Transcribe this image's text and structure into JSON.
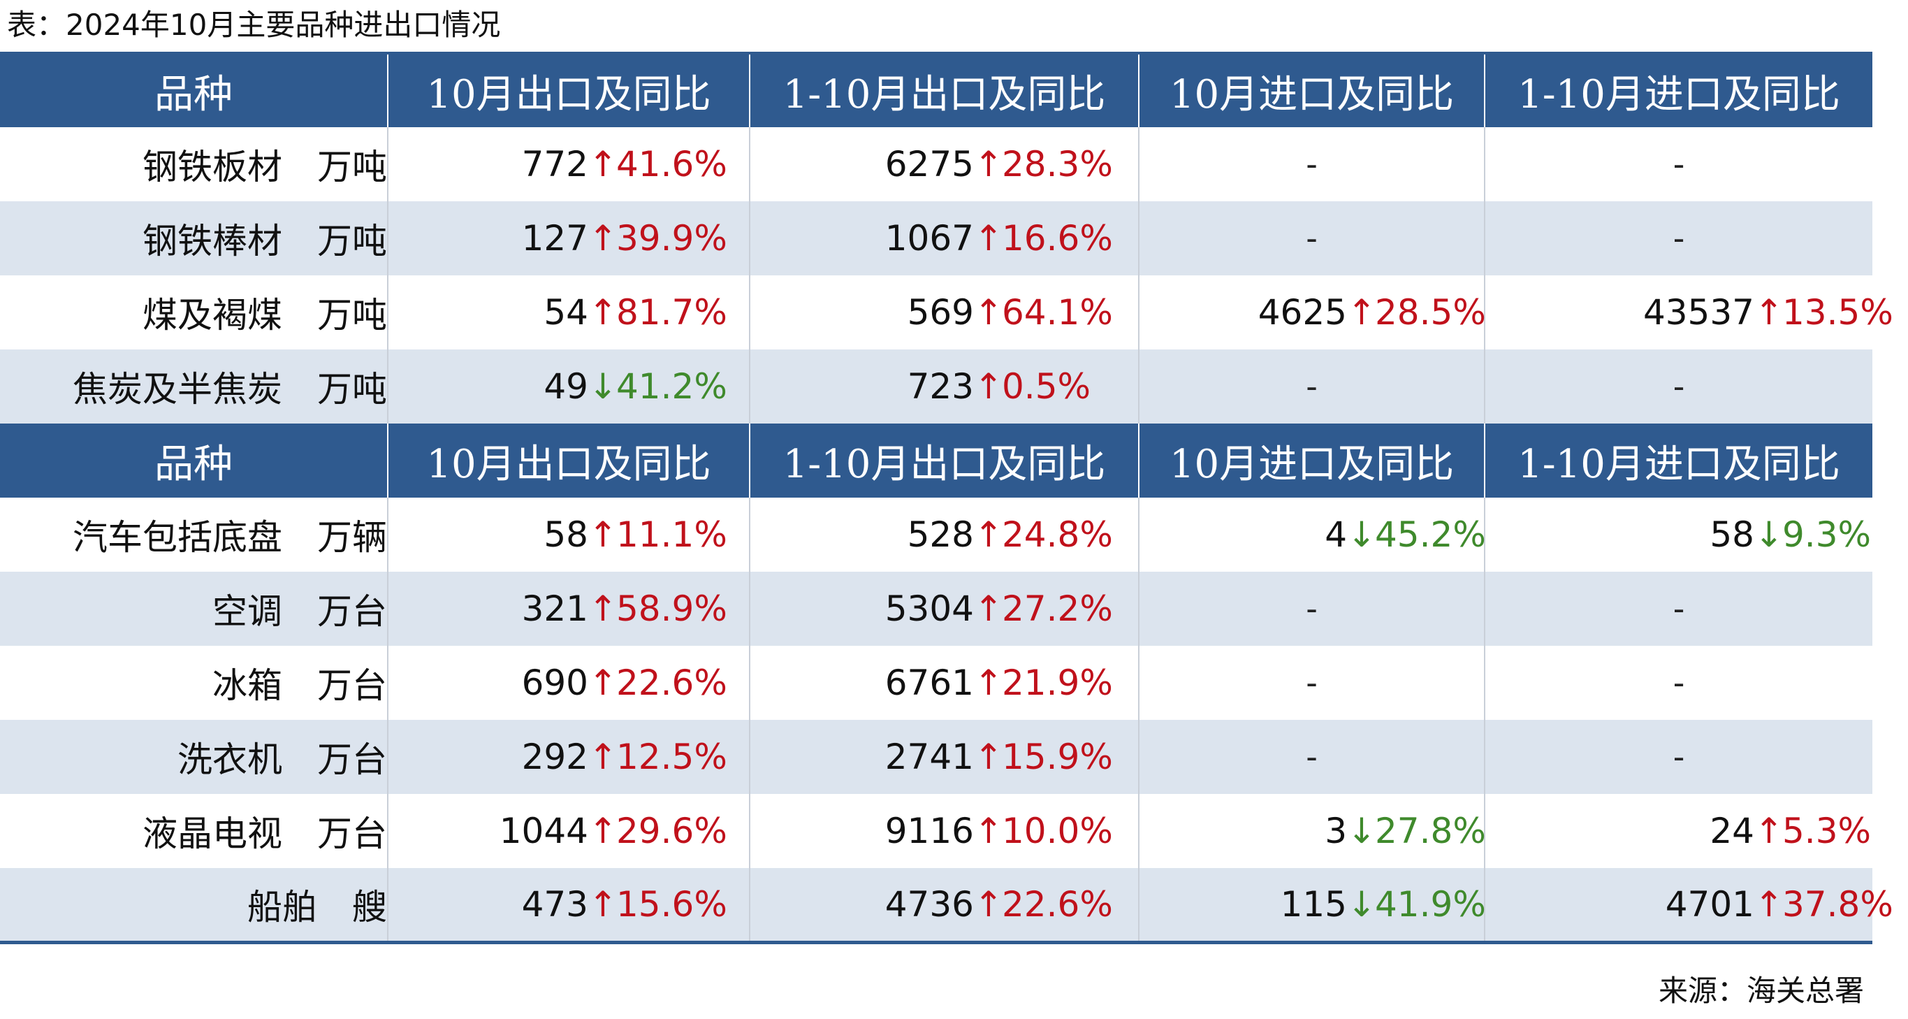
{
  "caption": "表：2024年10月主要品种进出口情况",
  "source": "来源：海关总署",
  "colors": {
    "header_bg": "#2f5a8f",
    "row_shade": "#dce4ee",
    "up": "#c0111b",
    "down": "#3f8a2c"
  },
  "icons": {
    "up": "↑",
    "down": "↓"
  },
  "headers": [
    "品种",
    "10月出口及同比",
    "1-10月出口及同比",
    "10月进口及同比",
    "1-10月进口及同比"
  ],
  "chart_data": {
    "type": "table",
    "sections": [
      {
        "rows": [
          {
            "name": "钢铁板材",
            "unit": "万吨",
            "cells": [
              {
                "value": "772",
                "dir": "up",
                "pct": "41.6%"
              },
              {
                "value": "6275",
                "dir": "up",
                "pct": "28.3%"
              },
              {
                "dash": "-"
              },
              {
                "dash": "-"
              }
            ]
          },
          {
            "name": "钢铁棒材",
            "unit": "万吨",
            "cells": [
              {
                "value": "127",
                "dir": "up",
                "pct": "39.9%"
              },
              {
                "value": "1067",
                "dir": "up",
                "pct": "16.6%"
              },
              {
                "dash": "-"
              },
              {
                "dash": "-"
              }
            ]
          },
          {
            "name": "煤及褐煤",
            "unit": "万吨",
            "cells": [
              {
                "value": "54",
                "dir": "up",
                "pct": "81.7%"
              },
              {
                "value": "569",
                "dir": "up",
                "pct": "64.1%"
              },
              {
                "value": "4625",
                "dir": "up",
                "pct": "28.5%"
              },
              {
                "value": "43537",
                "dir": "up",
                "pct": "13.5%"
              }
            ]
          },
          {
            "name": "焦炭及半焦炭",
            "unit": "万吨",
            "cells": [
              {
                "value": "49",
                "dir": "down",
                "pct": "41.2%"
              },
              {
                "value": "723",
                "dir": "up",
                "pct": "0.5%"
              },
              {
                "dash": "-"
              },
              {
                "dash": "-"
              }
            ]
          }
        ]
      },
      {
        "rows": [
          {
            "name": "汽车包括底盘",
            "unit": "万辆",
            "cells": [
              {
                "value": "58",
                "dir": "up",
                "pct": "11.1%"
              },
              {
                "value": "528",
                "dir": "up",
                "pct": "24.8%"
              },
              {
                "value": "4",
                "dir": "down",
                "pct": "45.2%"
              },
              {
                "value": "58",
                "dir": "down",
                "pct": "9.3%"
              }
            ]
          },
          {
            "name": "空调",
            "unit": "万台",
            "cells": [
              {
                "value": "321",
                "dir": "up",
                "pct": "58.9%"
              },
              {
                "value": "5304",
                "dir": "up",
                "pct": "27.2%"
              },
              {
                "dash": "-"
              },
              {
                "dash": "-"
              }
            ]
          },
          {
            "name": "冰箱",
            "unit": "万台",
            "cells": [
              {
                "value": "690",
                "dir": "up",
                "pct": "22.6%"
              },
              {
                "value": "6761",
                "dir": "up",
                "pct": "21.9%"
              },
              {
                "dash": "-"
              },
              {
                "dash": "-"
              }
            ]
          },
          {
            "name": "洗衣机",
            "unit": "万台",
            "cells": [
              {
                "value": "292",
                "dir": "up",
                "pct": "12.5%"
              },
              {
                "value": "2741",
                "dir": "up",
                "pct": "15.9%"
              },
              {
                "dash": "-"
              },
              {
                "dash": "-"
              }
            ]
          },
          {
            "name": "液晶电视",
            "unit": "万台",
            "cells": [
              {
                "value": "1044",
                "dir": "up",
                "pct": "29.6%"
              },
              {
                "value": "9116",
                "dir": "up",
                "pct": "10.0%"
              },
              {
                "value": "3",
                "dir": "down",
                "pct": "27.8%"
              },
              {
                "value": "24",
                "dir": "up",
                "pct": "5.3%"
              }
            ]
          },
          {
            "name": "船舶",
            "unit": "艘",
            "cells": [
              {
                "value": "473",
                "dir": "up",
                "pct": "15.6%"
              },
              {
                "value": "4736",
                "dir": "up",
                "pct": "22.6%"
              },
              {
                "value": "115",
                "dir": "down",
                "pct": "41.9%"
              },
              {
                "value": "4701",
                "dir": "up",
                "pct": "37.8%"
              }
            ]
          }
        ]
      }
    ]
  }
}
